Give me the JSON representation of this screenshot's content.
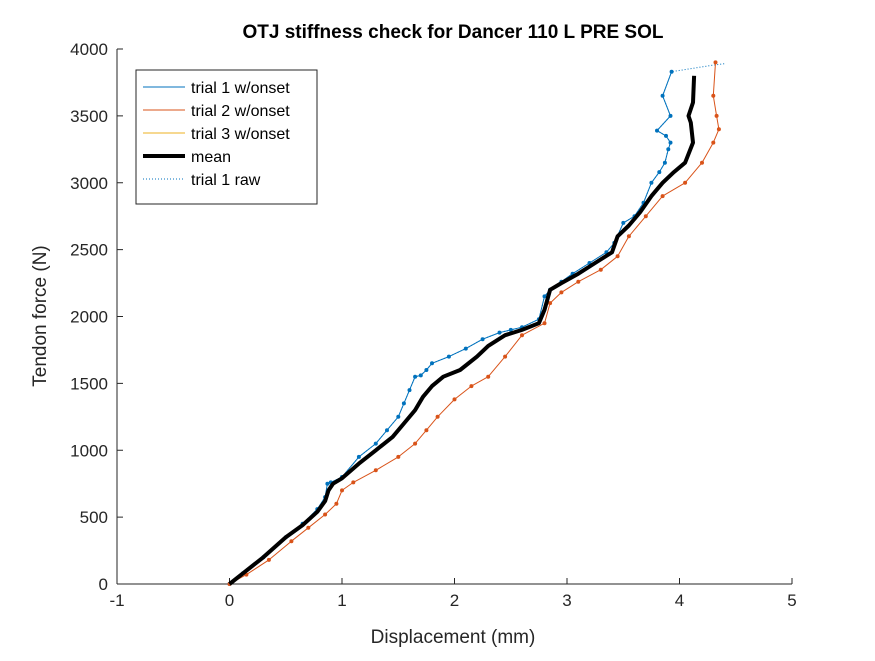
{
  "chart_data": {
    "type": "line",
    "title": "OTJ stiffness check for Dancer 110 L PRE SOL",
    "xlabel": "Displacement (mm)",
    "ylabel": "Tendon force (N)",
    "xlim": [
      -1,
      5
    ],
    "ylim": [
      0,
      4000
    ],
    "xticks": [
      -1,
      0,
      1,
      2,
      3,
      4,
      5
    ],
    "yticks": [
      0,
      500,
      1000,
      1500,
      2000,
      2500,
      3000,
      3500,
      4000
    ],
    "xtick_labels": [
      "-1",
      "0",
      "1",
      "2",
      "3",
      "4",
      "5"
    ],
    "ytick_labels": [
      "0",
      "500",
      "1000",
      "1500",
      "2000",
      "2500",
      "3000",
      "3500",
      "4000"
    ],
    "grid": false,
    "legend_position": "top-left",
    "series": [
      {
        "name": "trial 1 w/onset",
        "color": "#0072BD",
        "style": "solid-with-dots",
        "x": [
          0.0,
          0.12,
          0.3,
          0.5,
          0.65,
          0.78,
          0.85,
          0.87,
          0.9,
          1.0,
          1.15,
          1.3,
          1.4,
          1.5,
          1.55,
          1.6,
          1.65,
          1.7,
          1.75,
          1.8,
          1.95,
          2.1,
          2.25,
          2.4,
          2.5,
          2.6,
          2.75,
          2.8,
          2.85,
          2.95,
          3.05,
          3.2,
          3.35,
          3.42,
          3.5,
          3.6,
          3.68,
          3.75,
          3.82,
          3.87,
          3.9,
          3.92,
          3.88,
          3.8,
          3.92,
          3.85,
          3.93
        ],
        "y": [
          0,
          80,
          200,
          350,
          450,
          560,
          650,
          750,
          760,
          800,
          950,
          1050,
          1150,
          1250,
          1350,
          1450,
          1550,
          1560,
          1600,
          1650,
          1700,
          1760,
          1830,
          1880,
          1900,
          1920,
          1980,
          2150,
          2200,
          2260,
          2320,
          2400,
          2480,
          2550,
          2700,
          2750,
          2850,
          3000,
          3080,
          3150,
          3250,
          3300,
          3350,
          3390,
          3500,
          3650,
          3830
        ]
      },
      {
        "name": "trial 2 w/onset",
        "color": "#D95319",
        "style": "solid-with-dots",
        "x": [
          0.0,
          0.15,
          0.35,
          0.55,
          0.7,
          0.85,
          0.95,
          1.0,
          1.1,
          1.3,
          1.5,
          1.65,
          1.75,
          1.85,
          2.0,
          2.15,
          2.3,
          2.45,
          2.6,
          2.8,
          2.85,
          2.95,
          3.1,
          3.3,
          3.45,
          3.55,
          3.7,
          3.85,
          4.05,
          4.2,
          4.3,
          4.35,
          4.33,
          4.3,
          4.32
        ],
        "y": [
          0,
          70,
          180,
          320,
          420,
          520,
          600,
          700,
          760,
          850,
          950,
          1050,
          1150,
          1250,
          1380,
          1480,
          1550,
          1700,
          1860,
          1950,
          2100,
          2180,
          2260,
          2350,
          2450,
          2600,
          2750,
          2900,
          3000,
          3150,
          3300,
          3400,
          3500,
          3650,
          3900
        ]
      },
      {
        "name": "trial 3 w/onset",
        "color": "#EDB120",
        "style": "solid",
        "x": [],
        "y": []
      },
      {
        "name": "mean",
        "color": "#000000",
        "style": "thick-solid",
        "x": [
          0.0,
          0.12,
          0.3,
          0.5,
          0.65,
          0.78,
          0.85,
          0.88,
          0.92,
          1.0,
          1.15,
          1.3,
          1.45,
          1.55,
          1.65,
          1.72,
          1.8,
          1.9,
          2.05,
          2.2,
          2.3,
          2.45,
          2.6,
          2.75,
          2.8,
          2.85,
          2.95,
          3.1,
          3.25,
          3.4,
          3.45,
          3.55,
          3.65,
          3.75,
          3.85,
          3.95,
          4.05,
          4.12,
          4.1,
          4.08,
          4.12,
          4.13
        ],
        "y": [
          0,
          80,
          200,
          350,
          440,
          540,
          620,
          700,
          750,
          790,
          900,
          1000,
          1100,
          1200,
          1300,
          1400,
          1480,
          1550,
          1600,
          1700,
          1780,
          1860,
          1900,
          1950,
          2050,
          2200,
          2250,
          2320,
          2400,
          2480,
          2600,
          2680,
          2780,
          2900,
          3000,
          3080,
          3150,
          3300,
          3450,
          3500,
          3600,
          3800
        ]
      },
      {
        "name": "trial 1 raw",
        "color": "#0072BD",
        "style": "dotted",
        "x": [
          0.0,
          0.12,
          0.3,
          0.5,
          0.65,
          0.78,
          0.85,
          0.87,
          0.9,
          1.0,
          1.15,
          1.3,
          1.4,
          1.5,
          1.55,
          1.6,
          1.65,
          1.7,
          1.75,
          1.8,
          1.95,
          2.1,
          2.25,
          2.4,
          2.5,
          2.6,
          2.75,
          2.8,
          2.85,
          2.95,
          3.05,
          3.2,
          3.35,
          3.42,
          3.5,
          3.6,
          3.68,
          3.75,
          3.82,
          3.87,
          3.9,
          3.92,
          3.88,
          3.8,
          3.92,
          3.85,
          3.93,
          4.3,
          4.4
        ],
        "y": [
          0,
          80,
          200,
          350,
          450,
          560,
          650,
          750,
          760,
          800,
          950,
          1050,
          1150,
          1250,
          1350,
          1450,
          1550,
          1560,
          1600,
          1650,
          1700,
          1760,
          1830,
          1880,
          1900,
          1920,
          1980,
          2150,
          2200,
          2260,
          2320,
          2400,
          2480,
          2550,
          2700,
          2750,
          2850,
          3000,
          3080,
          3150,
          3250,
          3300,
          3350,
          3390,
          3500,
          3650,
          3830,
          3880,
          3890
        ]
      }
    ]
  }
}
